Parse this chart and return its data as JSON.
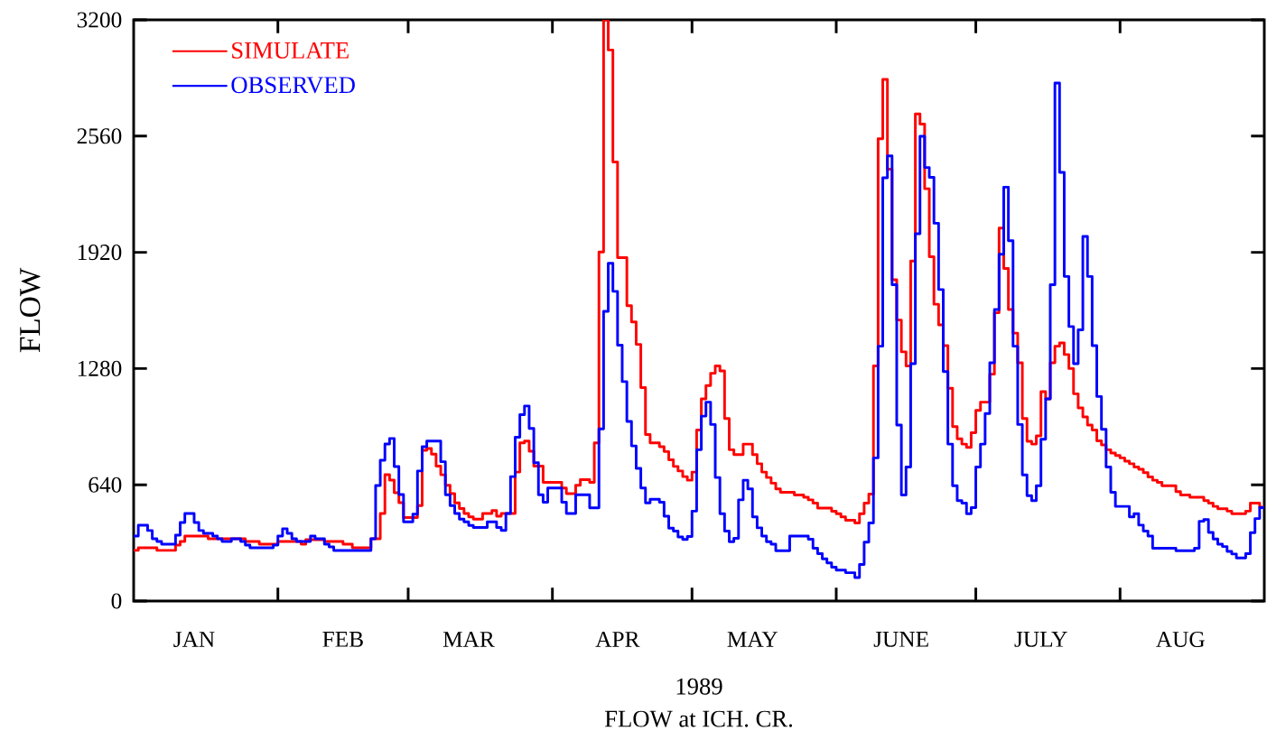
{
  "chart_data": {
    "type": "step",
    "title": "FLOW at ICH. CR.",
    "xlabel": "1989",
    "ylabel": "FLOW",
    "xlim": [
      "1989-01-01",
      "1989-09-01"
    ],
    "ylim": [
      0,
      3200
    ],
    "yticks": [
      0,
      640,
      1280,
      1920,
      2560,
      3200
    ],
    "xticks": [
      {
        "value": "1989-01-14",
        "label": "JAN"
      },
      {
        "value": "1989-02-01",
        "label": null
      },
      {
        "value": "1989-02-15",
        "label": "FEB"
      },
      {
        "value": "1989-03-01",
        "label": null
      },
      {
        "value": "1989-03-14",
        "label": "MAR"
      },
      {
        "value": "1989-04-01",
        "label": null
      },
      {
        "value": "1989-04-15",
        "label": "APR"
      },
      {
        "value": "1989-05-01",
        "label": null
      },
      {
        "value": "1989-05-14",
        "label": "MAY"
      },
      {
        "value": "1989-06-01",
        "label": null
      },
      {
        "value": "1989-06-15",
        "label": "JUNE"
      },
      {
        "value": "1989-07-01",
        "label": null
      },
      {
        "value": "1989-07-15",
        "label": "JULY"
      },
      {
        "value": "1989-08-01",
        "label": null
      },
      {
        "value": "1989-08-14",
        "label": "AUG"
      }
    ],
    "legend": "top left",
    "marker": "none",
    "line_style": "solid",
    "series": [
      {
        "name": "SIMULATE",
        "color": "#ff0000",
        "x": [
          "1989-01-01",
          "1989-01-02",
          "1989-01-06",
          "1989-01-10",
          "1989-01-11",
          "1989-01-12",
          "1989-01-17",
          "1989-01-25",
          "1989-01-28",
          "1989-02-01",
          "1989-02-06",
          "1989-02-07",
          "1989-02-11",
          "1989-02-15",
          "1989-02-17",
          "1989-02-21",
          "1989-02-23",
          "1989-02-24",
          "1989-02-25",
          "1989-02-26",
          "1989-02-27",
          "1989-02-28",
          "1989-03-03",
          "1989-03-04",
          "1989-03-05",
          "1989-03-06",
          "1989-03-07",
          "1989-03-08",
          "1989-03-09",
          "1989-03-10",
          "1989-03-11",
          "1989-03-12",
          "1989-03-13",
          "1989-03-14",
          "1989-03-15",
          "1989-03-17",
          "1989-03-19",
          "1989-03-20",
          "1989-03-21",
          "1989-03-24",
          "1989-03-25",
          "1989-03-26",
          "1989-03-27",
          "1989-03-28",
          "1989-03-30",
          "1989-04-03",
          "1989-04-04",
          "1989-04-06",
          "1989-04-07",
          "1989-04-09",
          "1989-04-10",
          "1989-04-11",
          "1989-04-12",
          "1989-04-13",
          "1989-04-14",
          "1989-04-15",
          "1989-04-17",
          "1989-04-18",
          "1989-04-19",
          "1989-04-20",
          "1989-04-21",
          "1989-04-22",
          "1989-04-24",
          "1989-04-25",
          "1989-04-26",
          "1989-04-27",
          "1989-04-28",
          "1989-04-29",
          "1989-04-30",
          "1989-05-01",
          "1989-05-02",
          "1989-05-03",
          "1989-05-04",
          "1989-05-05",
          "1989-05-06",
          "1989-05-07",
          "1989-05-08",
          "1989-05-09",
          "1989-05-10",
          "1989-05-12",
          "1989-05-14",
          "1989-05-15",
          "1989-05-16",
          "1989-05-17",
          "1989-05-18",
          "1989-05-19",
          "1989-05-20",
          "1989-05-23",
          "1989-05-25",
          "1989-05-26",
          "1989-05-27",
          "1989-05-28",
          "1989-05-31",
          "1989-06-01",
          "1989-06-02",
          "1989-06-03",
          "1989-06-05",
          "1989-06-06",
          "1989-06-07",
          "1989-06-08",
          "1989-06-09",
          "1989-06-10",
          "1989-06-11",
          "1989-06-12",
          "1989-06-13",
          "1989-06-14",
          "1989-06-15",
          "1989-06-16",
          "1989-06-17",
          "1989-06-18",
          "1989-06-19",
          "1989-06-20",
          "1989-06-21",
          "1989-06-22",
          "1989-06-23",
          "1989-06-24",
          "1989-06-25",
          "1989-06-26",
          "1989-06-27",
          "1989-06-28",
          "1989-06-29",
          "1989-06-30",
          "1989-07-01",
          "1989-07-02",
          "1989-07-04",
          "1989-07-05",
          "1989-07-06",
          "1989-07-07",
          "1989-07-08",
          "1989-07-09",
          "1989-07-10",
          "1989-07-11",
          "1989-07-12",
          "1989-07-13",
          "1989-07-14",
          "1989-07-15",
          "1989-07-16",
          "1989-07-17",
          "1989-07-18",
          "1989-07-19",
          "1989-07-20",
          "1989-07-21",
          "1989-07-22",
          "1989-07-23",
          "1989-07-24",
          "1989-07-25",
          "1989-07-26",
          "1989-07-27",
          "1989-07-28",
          "1989-07-29",
          "1989-07-30",
          "1989-07-31",
          "1989-08-01",
          "1989-08-02",
          "1989-08-03",
          "1989-08-04",
          "1989-08-05",
          "1989-08-06",
          "1989-08-07",
          "1989-08-08",
          "1989-08-09",
          "1989-08-10",
          "1989-08-13",
          "1989-08-14",
          "1989-08-16",
          "1989-08-19",
          "1989-08-20",
          "1989-08-21",
          "1989-08-22",
          "1989-08-24",
          "1989-08-25",
          "1989-08-28",
          "1989-08-29",
          "1989-08-31",
          "1989-09-01"
        ],
        "values": [
          278,
          293,
          278,
          308,
          328,
          358,
          343,
          328,
          313,
          328,
          313,
          338,
          328,
          313,
          293,
          343,
          482,
          696,
          666,
          596,
          542,
          460,
          525,
          830,
          840,
          809,
          743,
          695,
          637,
          591,
          540,
          509,
          482,
          463,
          451,
          482,
          498,
          467,
          482,
          710,
          871,
          881,
          825,
          743,
          653,
          622,
          591,
          637,
          668,
          653,
          871,
          1922,
          3200,
          3034,
          2417,
          1891,
          1626,
          1537,
          1413,
          1175,
          917,
          871,
          850,
          823,
          778,
          741,
          716,
          685,
          665,
          710,
          942,
          1113,
          1186,
          1254,
          1294,
          1267,
          1005,
          833,
          806,
          864,
          806,
          756,
          710,
          680,
          649,
          617,
          599,
          584,
          571,
          557,
          539,
          512,
          494,
          481,
          463,
          445,
          430,
          481,
          539,
          589,
          1294,
          2545,
          2872,
          2378,
          1769,
          1547,
          1372,
          1294,
          1872,
          2682,
          2626,
          2270,
          1896,
          1634,
          1520,
          1406,
          1171,
          960,
          893,
          864,
          846,
          927,
          1050,
          1095,
          1249,
          1587,
          2053,
          1831,
          1605,
          1475,
          1312,
          1005,
          879,
          864,
          909,
          1153,
          1113,
          1312,
          1403,
          1421,
          1357,
          1280,
          1141,
          1063,
          1014,
          969,
          942,
          882,
          860,
          833,
          815,
          801,
          788,
          770,
          756,
          738,
          725,
          707,
          683,
          665,
          653,
          635,
          602,
          584,
          571,
          553,
          539,
          521,
          508,
          495,
          481,
          495,
          539,
          517,
          517
        ]
      },
      {
        "name": "OBSERVED",
        "color": "#0000ff",
        "x": [
          "1989-01-01",
          "1989-01-02",
          "1989-01-04",
          "1989-01-05",
          "1989-01-06",
          "1989-01-07",
          "1989-01-10",
          "1989-01-11",
          "1989-01-12",
          "1989-01-14",
          "1989-01-15",
          "1989-01-16",
          "1989-01-18",
          "1989-01-19",
          "1989-01-20",
          "1989-01-22",
          "1989-01-24",
          "1989-01-25",
          "1989-01-26",
          "1989-01-31",
          "1989-02-01",
          "1989-02-02",
          "1989-02-03",
          "1989-02-04",
          "1989-02-05",
          "1989-02-08",
          "1989-02-09",
          "1989-02-11",
          "1989-02-12",
          "1989-02-13",
          "1989-02-21",
          "1989-02-22",
          "1989-02-23",
          "1989-02-24",
          "1989-02-25",
          "1989-02-26",
          "1989-02-27",
          "1989-02-28",
          "1989-03-02",
          "1989-03-03",
          "1989-03-04",
          "1989-03-05",
          "1989-03-08",
          "1989-03-09",
          "1989-03-10",
          "1989-03-11",
          "1989-03-12",
          "1989-03-13",
          "1989-03-14",
          "1989-03-15",
          "1989-03-18",
          "1989-03-20",
          "1989-03-21",
          "1989-03-22",
          "1989-03-23",
          "1989-03-24",
          "1989-03-25",
          "1989-03-26",
          "1989-03-27",
          "1989-03-28",
          "1989-03-29",
          "1989-03-30",
          "1989-03-31",
          "1989-04-03",
          "1989-04-04",
          "1989-04-06",
          "1989-04-09",
          "1989-04-11",
          "1989-04-12",
          "1989-04-13",
          "1989-04-14",
          "1989-04-15",
          "1989-04-16",
          "1989-04-17",
          "1989-04-18",
          "1989-04-19",
          "1989-04-20",
          "1989-04-21",
          "1989-04-22",
          "1989-04-24",
          "1989-04-25",
          "1989-04-26",
          "1989-04-27",
          "1989-04-28",
          "1989-04-29",
          "1989-04-30",
          "1989-05-01",
          "1989-05-02",
          "1989-05-03",
          "1989-05-04",
          "1989-05-05",
          "1989-05-06",
          "1989-05-07",
          "1989-05-08",
          "1989-05-09",
          "1989-05-10",
          "1989-05-11",
          "1989-05-12",
          "1989-05-13",
          "1989-05-14",
          "1989-05-15",
          "1989-05-16",
          "1989-05-17",
          "1989-05-18",
          "1989-05-19",
          "1989-05-22",
          "1989-05-26",
          "1989-05-27",
          "1989-05-28",
          "1989-05-29",
          "1989-05-30",
          "1989-05-31",
          "1989-06-01",
          "1989-06-03",
          "1989-06-05",
          "1989-06-06",
          "1989-06-07",
          "1989-06-08",
          "1989-06-09",
          "1989-06-10",
          "1989-06-11",
          "1989-06-12",
          "1989-06-13",
          "1989-06-14",
          "1989-06-15",
          "1989-06-16",
          "1989-06-17",
          "1989-06-18",
          "1989-06-19",
          "1989-06-20",
          "1989-06-21",
          "1989-06-22",
          "1989-06-23",
          "1989-06-24",
          "1989-06-25",
          "1989-06-26",
          "1989-06-27",
          "1989-06-28",
          "1989-06-29",
          "1989-06-30",
          "1989-07-01",
          "1989-07-02",
          "1989-07-03",
          "1989-07-04",
          "1989-07-05",
          "1989-07-06",
          "1989-07-07",
          "1989-07-08",
          "1989-07-09",
          "1989-07-10",
          "1989-07-11",
          "1989-07-12",
          "1989-07-13",
          "1989-07-14",
          "1989-07-15",
          "1989-07-16",
          "1989-07-17",
          "1989-07-18",
          "1989-07-19",
          "1989-07-20",
          "1989-07-21",
          "1989-07-22",
          "1989-07-23",
          "1989-07-24",
          "1989-07-25",
          "1989-07-26",
          "1989-07-27",
          "1989-07-28",
          "1989-07-29",
          "1989-07-30",
          "1989-07-31",
          "1989-08-03",
          "1989-08-04",
          "1989-08-05",
          "1989-08-06",
          "1989-08-07",
          "1989-08-08",
          "1989-08-13",
          "1989-08-17",
          "1989-08-18",
          "1989-08-19",
          "1989-08-20",
          "1989-08-21",
          "1989-08-22",
          "1989-08-23",
          "1989-08-24",
          "1989-08-25",
          "1989-08-26",
          "1989-08-28",
          "1989-08-29",
          "1989-08-30",
          "1989-08-31",
          "1989-09-01"
        ],
        "values": [
          358,
          417,
          388,
          343,
          328,
          313,
          363,
          432,
          482,
          432,
          388,
          373,
          358,
          343,
          328,
          343,
          328,
          308,
          293,
          308,
          358,
          398,
          373,
          343,
          328,
          358,
          343,
          313,
          298,
          278,
          343,
          636,
          775,
          865,
          895,
          740,
          586,
          436,
          478,
          716,
          850,
          881,
          767,
          585,
          525,
          482,
          451,
          436,
          416,
          405,
          436,
          405,
          389,
          482,
          685,
          902,
          1026,
          1074,
          950,
          761,
          585,
          544,
          622,
          544,
          482,
          585,
          513,
          948,
          1595,
          1860,
          1705,
          1409,
          1208,
          989,
          854,
          730,
          622,
          540,
          560,
          544,
          467,
          401,
          385,
          353,
          339,
          355,
          495,
          833,
          1018,
          1095,
          972,
          680,
          481,
          385,
          327,
          345,
          557,
          665,
          617,
          463,
          403,
          358,
          327,
          313,
          277,
          358,
          340,
          291,
          261,
          232,
          210,
          186,
          170,
          156,
          129,
          201,
          324,
          430,
          788,
          1403,
          2330,
          2451,
          1742,
          969,
          584,
          738,
          1307,
          2022,
          2559,
          2387,
          2333,
          2080,
          1715,
          1263,
          864,
          635,
          553,
          539,
          481,
          514,
          738,
          864,
          1032,
          1312,
          1605,
          1909,
          2279,
          1984,
          1403,
          972,
          694,
          580,
          553,
          635,
          891,
          1113,
          1742,
          2852,
          2360,
          1787,
          1511,
          1307,
          1493,
          2007,
          1787,
          1406,
          1126,
          945,
          738,
          599,
          521,
          463,
          481,
          418,
          385,
          358,
          291,
          277,
          291,
          439,
          448,
          378,
          342,
          313,
          300,
          273,
          259,
          237,
          261,
          376,
          454,
          514,
          514
        ]
      }
    ]
  }
}
